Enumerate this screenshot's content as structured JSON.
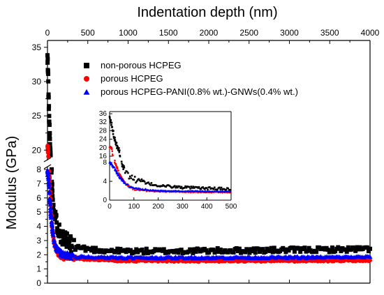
{
  "chart_data": {
    "type": "scatter",
    "xlabel": "Indentation depth (nm)",
    "ylabel": "Modulus (GPa)",
    "x_axis_position": "top",
    "xlim": [
      0,
      4000
    ],
    "x_ticks": [
      0,
      500,
      1000,
      1500,
      2000,
      2500,
      3000,
      3500,
      4000
    ],
    "y_axis_break": {
      "lower_range": [
        0,
        8.2
      ],
      "upper_range": [
        18.5,
        36
      ],
      "lower_ticks": [
        0,
        1,
        2,
        3,
        4,
        5,
        6,
        7,
        8
      ],
      "upper_ticks": [
        20,
        25,
        30,
        35
      ]
    },
    "legend_position": "top-left",
    "series": [
      {
        "name": "non-porous HCPEG",
        "marker": "square",
        "color": "#000000",
        "trend": [
          [
            0,
            33.5
          ],
          [
            8,
            31
          ],
          [
            15,
            27
          ],
          [
            22,
            24
          ],
          [
            30,
            21
          ],
          [
            40,
            19
          ],
          [
            50,
            8.0
          ],
          [
            60,
            6.5
          ],
          [
            80,
            5.2
          ],
          [
            100,
            4.5
          ],
          [
            150,
            3.6
          ],
          [
            200,
            3.1
          ],
          [
            300,
            2.7
          ],
          [
            400,
            2.5
          ],
          [
            500,
            2.4
          ],
          [
            700,
            2.3
          ],
          [
            1000,
            2.25
          ],
          [
            1500,
            2.25
          ],
          [
            2000,
            2.28
          ],
          [
            2500,
            2.3
          ],
          [
            3000,
            2.33
          ],
          [
            3500,
            2.36
          ],
          [
            4000,
            2.4
          ]
        ],
        "spread": 0.35
      },
      {
        "name": "porous HCPEG",
        "marker": "circle",
        "color": "#ff0000",
        "trend": [
          [
            0,
            20.5
          ],
          [
            10,
            19.5
          ],
          [
            20,
            8.2
          ],
          [
            30,
            7.0
          ],
          [
            40,
            5.5
          ],
          [
            60,
            3.8
          ],
          [
            80,
            2.9
          ],
          [
            100,
            2.4
          ],
          [
            150,
            2.0
          ],
          [
            200,
            1.85
          ],
          [
            300,
            1.75
          ],
          [
            400,
            1.7
          ],
          [
            600,
            1.65
          ],
          [
            800,
            1.6
          ],
          [
            1000,
            1.57
          ],
          [
            2000,
            1.56
          ],
          [
            3000,
            1.57
          ],
          [
            4000,
            1.6
          ]
        ],
        "spread": 0.12
      },
      {
        "name": "porous HCPEG-PANI(0.8% wt.)-GNWs(0.4% wt.)",
        "marker": "triangle",
        "color": "#0000ff",
        "trend": [
          [
            0,
            8.0
          ],
          [
            10,
            7.5
          ],
          [
            20,
            6.8
          ],
          [
            30,
            5.8
          ],
          [
            40,
            5.0
          ],
          [
            60,
            3.8
          ],
          [
            80,
            3.0
          ],
          [
            100,
            2.6
          ],
          [
            150,
            2.2
          ],
          [
            200,
            2.0
          ],
          [
            300,
            1.9
          ],
          [
            500,
            1.85
          ],
          [
            1000,
            1.8
          ],
          [
            2000,
            1.8
          ],
          [
            3000,
            1.82
          ],
          [
            4000,
            1.85
          ]
        ],
        "spread": 0.12
      }
    ],
    "inset": {
      "xlim": [
        0,
        500
      ],
      "x_ticks": [
        0,
        100,
        200,
        300,
        400,
        500
      ],
      "y_axis_break": {
        "lower_range": [
          0,
          8.6
        ],
        "upper_range": [
          15,
          37
        ],
        "lower_ticks": [
          0,
          4,
          8
        ],
        "upper_ticks": [
          16,
          20,
          24,
          28,
          32,
          36
        ]
      }
    }
  }
}
